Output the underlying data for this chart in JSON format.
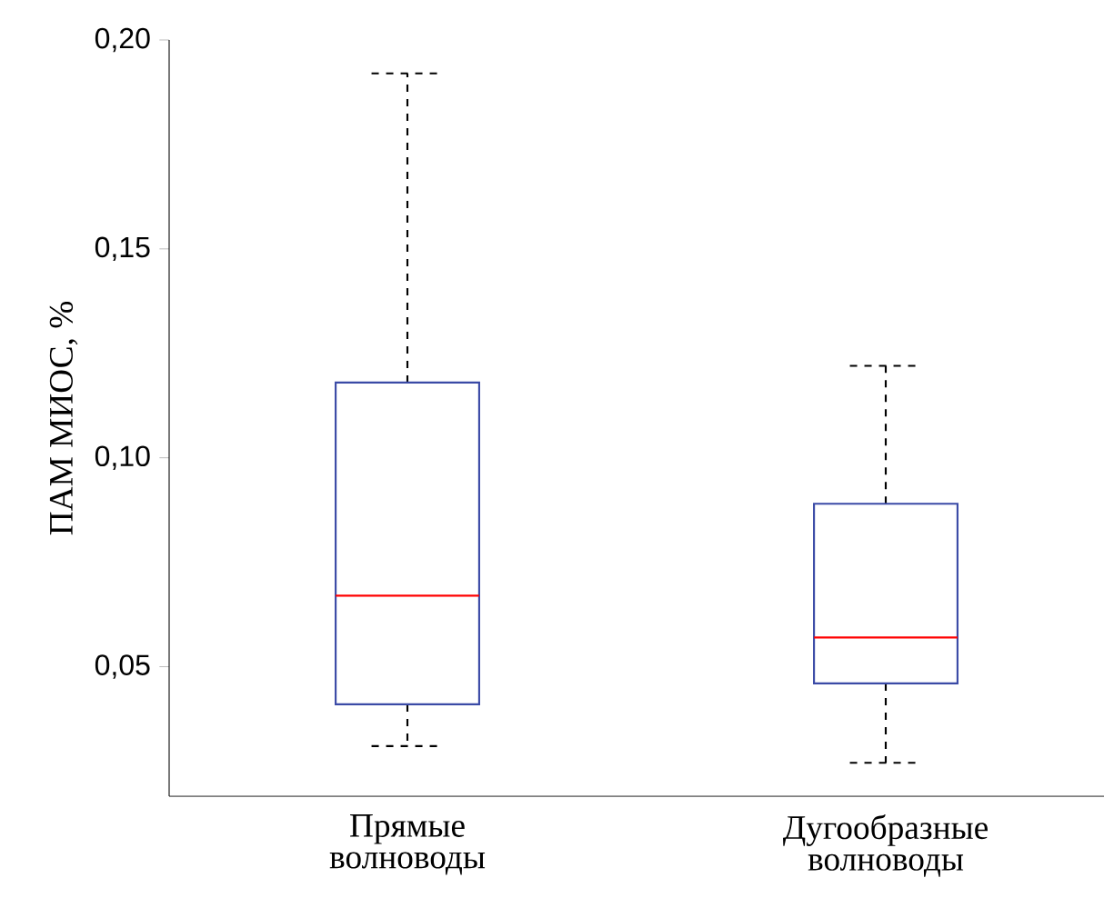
{
  "chart_data": {
    "type": "box",
    "ylabel": "ПАМ МИОС, %",
    "categories": [
      "Прямые волноводы",
      "Дугообразные волноводы"
    ],
    "boxes": [
      {
        "low": 0.031,
        "q1": 0.041,
        "median": 0.067,
        "q3": 0.118,
        "high": 0.192
      },
      {
        "low": 0.027,
        "q1": 0.046,
        "median": 0.057,
        "q3": 0.089,
        "high": 0.122
      }
    ],
    "color": "#3a4aa6",
    "ylim": [
      0.019,
      0.2
    ],
    "yticks": [
      {
        "value": 0.05,
        "label": "0,05"
      },
      {
        "value": 0.1,
        "label": "0,10"
      },
      {
        "value": 0.15,
        "label": "0,15"
      },
      {
        "value": 0.2,
        "label": "0,20"
      }
    ],
    "grid": false
  }
}
